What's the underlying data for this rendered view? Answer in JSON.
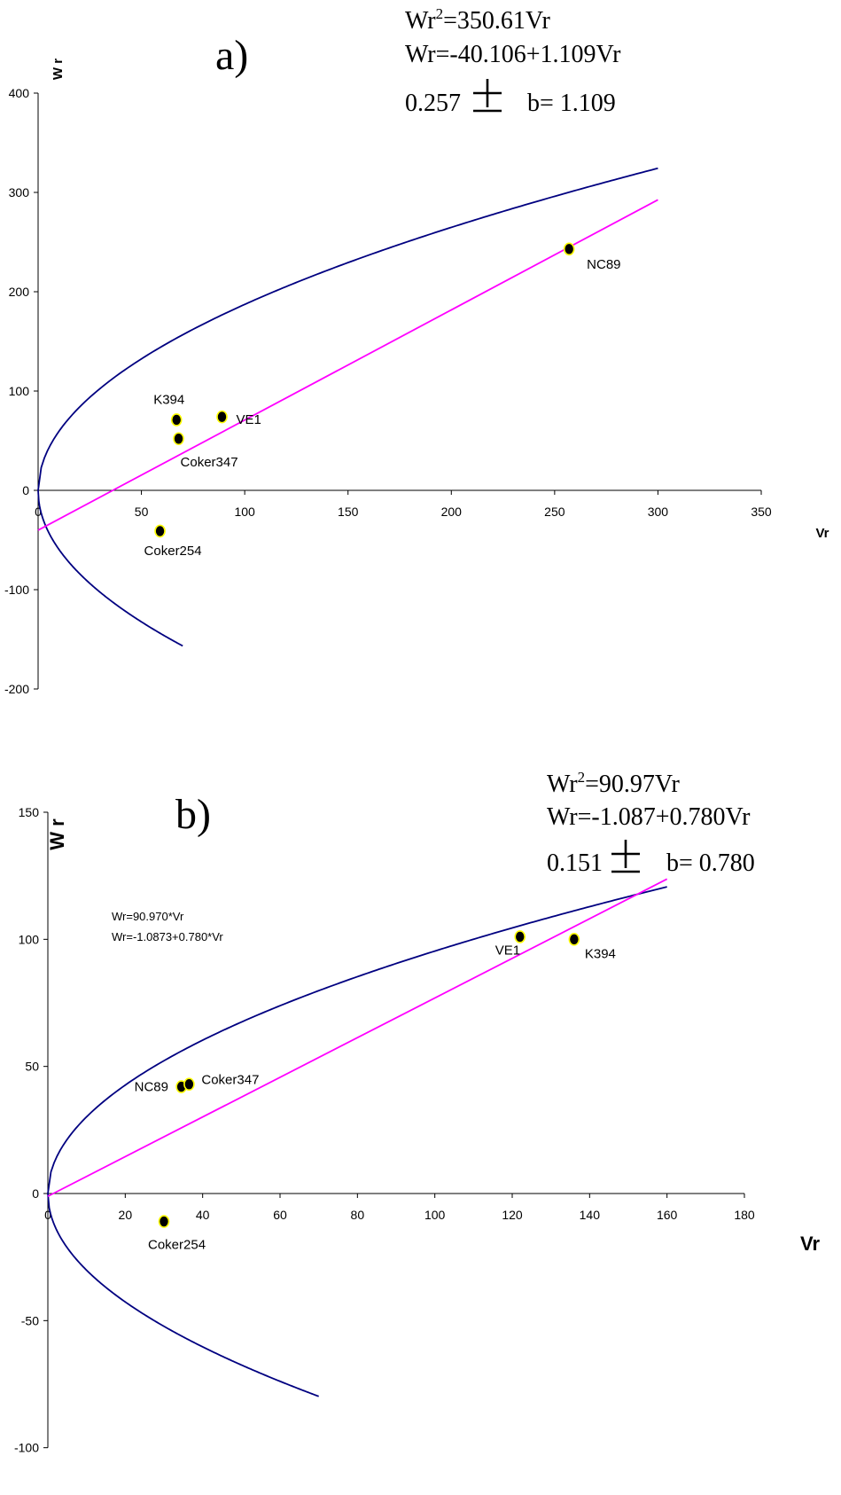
{
  "chart_data": [
    {
      "type": "scatter",
      "panel_label": "a)",
      "equations": {
        "eq1_prefix": "Wr",
        "eq1_sup": "2",
        "eq1_suffix": "=350.61Vr",
        "eq2": "Wr=-40.106+1.109Vr",
        "eq3_left": "0.257",
        "eq3_pm": "±",
        "eq3_right": "b= 1.109"
      },
      "ylabel": "W r",
      "xlabel": "Vr",
      "xlim": [
        0,
        350
      ],
      "ylim": [
        -200,
        400
      ],
      "xticks": [
        0,
        50,
        100,
        150,
        200,
        250,
        300,
        350
      ],
      "yticks": [
        -200,
        -100,
        0,
        100,
        200,
        300,
        400
      ],
      "parabola": {
        "k": 350.61,
        "xmax_upper": 300,
        "xmax_lower": 70
      },
      "regression": {
        "intercept": -40.106,
        "slope": 1.109,
        "x_range": [
          0,
          300
        ]
      },
      "points": [
        {
          "label": "NC89",
          "x": 257,
          "y": 243
        },
        {
          "label": "K394",
          "x": 67,
          "y": 71
        },
        {
          "label": "VE1",
          "x": 89,
          "y": 74
        },
        {
          "label": "Coker347",
          "x": 68,
          "y": 52
        },
        {
          "label": "Coker254",
          "x": 59,
          "y": -41
        }
      ],
      "colors": {
        "parabola": "#000080",
        "regression": "#ff00ff",
        "point_fill": "#000000",
        "point_edge": "#ffff00"
      }
    },
    {
      "type": "scatter",
      "panel_label": "b)",
      "equations": {
        "eq1_prefix": "Wr",
        "eq1_sup": "2",
        "eq1_suffix": "=90.97Vr",
        "eq2": "Wr=-1.087+0.780Vr",
        "eq3_left": "0.151",
        "eq3_pm": "±",
        "eq3_right": "b= 0.780"
      },
      "inner_equations": [
        "Wr=90.970*Vr",
        "Wr=-1.0873+0.780*Vr"
      ],
      "ylabel": "W r",
      "xlabel": "Vr",
      "xlim": [
        0,
        180
      ],
      "ylim": [
        -100,
        150
      ],
      "xticks": [
        0,
        20,
        40,
        60,
        80,
        100,
        120,
        140,
        160,
        180
      ],
      "yticks": [
        -100,
        -50,
        0,
        50,
        100,
        150
      ],
      "parabola": {
        "k": 90.97,
        "xmax_upper": 160,
        "xmax_lower": 70
      },
      "regression": {
        "intercept": -1.087,
        "slope": 0.78,
        "x_range": [
          0,
          160
        ]
      },
      "points": [
        {
          "label": "VE1",
          "x": 122,
          "y": 101
        },
        {
          "label": "K394",
          "x": 136,
          "y": 100
        },
        {
          "label": "NC89",
          "x": 34.5,
          "y": 42
        },
        {
          "label": "Coker347",
          "x": 36.5,
          "y": 43
        },
        {
          "label": "Coker254",
          "x": 30,
          "y": -11
        }
      ],
      "colors": {
        "parabola": "#000080",
        "regression": "#ff00ff",
        "point_fill": "#000000",
        "point_edge": "#ffff00"
      }
    }
  ]
}
